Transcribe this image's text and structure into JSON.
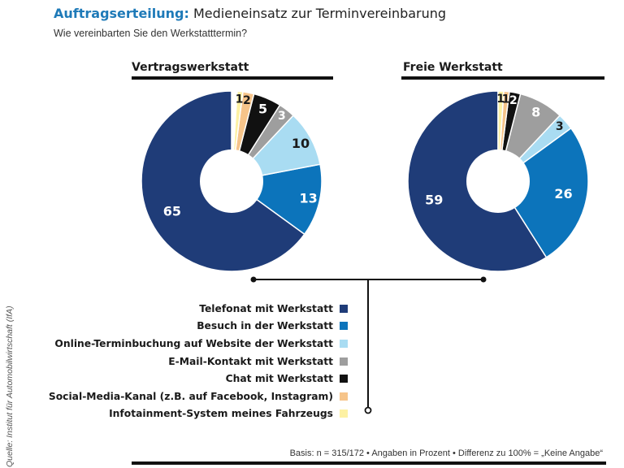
{
  "header": {
    "title_accent": "Auftragserteilung:",
    "title_main": "Medieneinsatz zur Terminvereinbarung",
    "subtitle": "Wie vereinbarten Sie den Werkstatttermin?"
  },
  "colors": {
    "Telefonat mit Werkstatt": "#1f3c78",
    "Besuch in der Werkstatt": "#0c74bb",
    "Online-Terminbuchung auf Website der Werkstatt": "#a9dcf2",
    "E-Mail-Kontakt mit Werkstatt": "#9e9e9e",
    "Chat mit Werkstatt": "#111111",
    "Social-Media-Kanal (z.B. auf Facebook, Instagram)": "#f6c48a",
    "Infotainment-System meines Fahrzeugs": "#fdf1a3"
  },
  "legend": [
    "Telefonat mit Werkstatt",
    "Besuch in der Werkstatt",
    "Online-Terminbuchung auf Website der Werkstatt",
    "E-Mail-Kontakt mit Werkstatt",
    "Chat mit Werkstatt",
    "Social-Media-Kanal (z.B. auf Facebook, Instagram)",
    "Infotainment-System meines Fahrzeugs"
  ],
  "chart_data": [
    {
      "type": "pie",
      "title": "Vertragswerkstatt",
      "categories": [
        "Telefonat mit Werkstatt",
        "Besuch in der Werkstatt",
        "Online-Terminbuchung auf Website der Werkstatt",
        "E-Mail-Kontakt mit Werkstatt",
        "Chat mit Werkstatt",
        "Social-Media-Kanal (z.B. auf Facebook, Instagram)",
        "Infotainment-System meines Fahrzeugs"
      ],
      "values": [
        65,
        13,
        10,
        3,
        5,
        2,
        1
      ],
      "labels": [
        "65",
        "13",
        "10",
        "3",
        "5",
        "2",
        "1"
      ]
    },
    {
      "type": "pie",
      "title": "Freie Werkstatt",
      "categories": [
        "Telefonat mit Werkstatt",
        "Besuch in der Werkstatt",
        "Online-Terminbuchung auf Website der Werkstatt",
        "E-Mail-Kontakt mit Werkstatt",
        "Chat mit Werkstatt",
        "Social-Media-Kanal (z.B. auf Facebook, Instagram)",
        "Infotainment-System meines Fahrzeugs"
      ],
      "values": [
        59,
        26,
        3,
        8,
        2,
        1,
        1
      ],
      "labels": [
        "59",
        "26",
        "3",
        "8",
        "2",
        "1",
        "1"
      ]
    }
  ],
  "source": "Quelle: Institut für Automobilwirtschaft (IfA)",
  "footer_note": "Basis: n = 315/172 • Angaben in Prozent • Differenz zu 100% = „Keine Angabe“"
}
